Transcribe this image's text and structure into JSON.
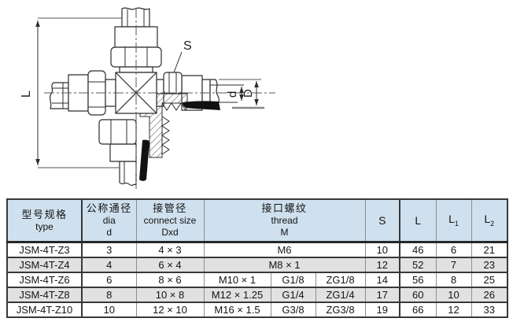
{
  "drawing": {
    "labels": {
      "length_dim": "L",
      "wrench_size": "S",
      "inner_dia": "d",
      "outer_dia": "D"
    }
  },
  "table": {
    "header": {
      "type": {
        "zh": "型号规格",
        "en": "type"
      },
      "dia": {
        "zh": "公称通径",
        "en": "dia",
        "sym": "d"
      },
      "connect": {
        "zh": "接管径",
        "en": "connect size",
        "sym": "Dxd"
      },
      "thread": {
        "zh": "接口螺纹",
        "en": "thread",
        "sym": "M"
      },
      "s": "S",
      "l": "L",
      "l1": {
        "base": "L",
        "sub": "1"
      },
      "l2": {
        "base": "L",
        "sub": "2"
      }
    },
    "rows": [
      {
        "type": "JSM-4T-Z3",
        "dia": "3",
        "connect": "4 × 3",
        "thread": [
          "M6"
        ],
        "s": "10",
        "l": "46",
        "l1": "6",
        "l2": "21",
        "shaded": false
      },
      {
        "type": "JSM-4T-Z4",
        "dia": "4",
        "connect": "6 × 4",
        "thread": [
          "M8 × 1"
        ],
        "s": "12",
        "l": "52",
        "l1": "7",
        "l2": "23",
        "shaded": true
      },
      {
        "type": "JSM-4T-Z6",
        "dia": "6",
        "connect": "8 × 6",
        "thread": [
          "M10 × 1",
          "G1/8",
          "ZG1/8"
        ],
        "s": "14",
        "l": "56",
        "l1": "8",
        "l2": "25",
        "shaded": false
      },
      {
        "type": "JSM-4T-Z8",
        "dia": "8",
        "connect": "10 × 8",
        "thread": [
          "M12 × 1.25",
          "G1/4",
          "ZG1/4"
        ],
        "s": "17",
        "l": "60",
        "l1": "10",
        "l2": "26",
        "shaded": true
      },
      {
        "type": "JSM-4T-Z10",
        "dia": "10",
        "connect": "12 × 10",
        "thread": [
          "M16 × 1.5",
          "G3/8",
          "ZG3/8"
        ],
        "s": "19",
        "l": "66",
        "l1": "12",
        "l2": "33",
        "shaded": false
      }
    ]
  },
  "colors": {
    "header_bg": "#cfe0ee",
    "stripe_bg": "#e1e1e1",
    "grid_dark": "#383838",
    "grid_light": "#8e8e8e",
    "drawing_stroke": "#2c2c2c"
  }
}
